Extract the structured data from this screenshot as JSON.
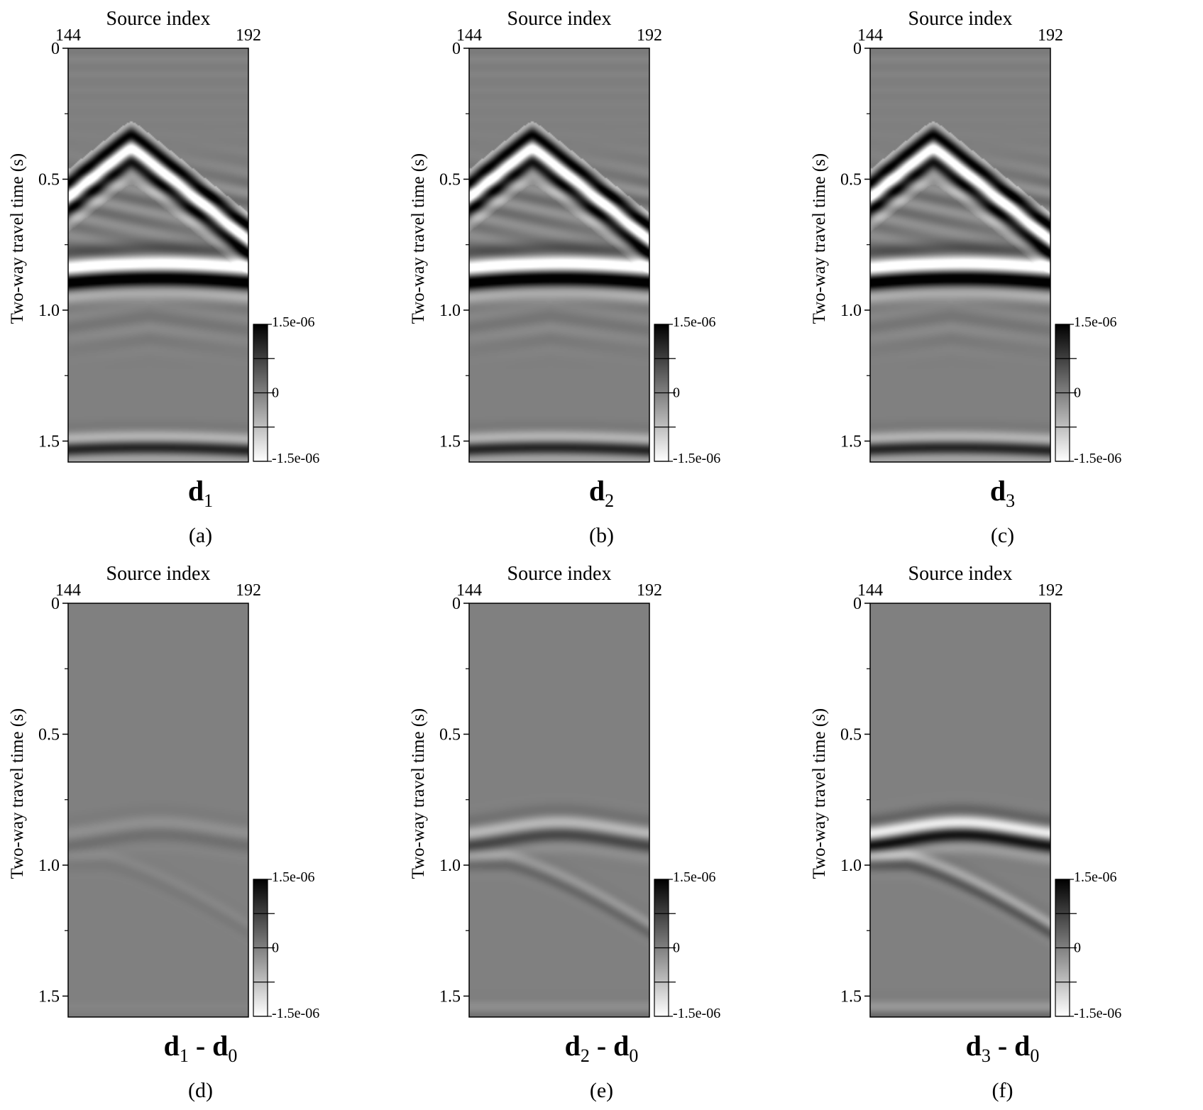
{
  "figure": {
    "panels": [
      {
        "id": "a",
        "label": "(a)",
        "formula": {
          "d": "d",
          "sub": "1",
          "minus": "",
          "d2": "",
          "sub2": ""
        },
        "kind": "data",
        "strength": 1.0,
        "secondary": 1.0
      },
      {
        "id": "b",
        "label": "(b)",
        "formula": {
          "d": "d",
          "sub": "2",
          "minus": "",
          "d2": "",
          "sub2": ""
        },
        "kind": "data",
        "strength": 1.0,
        "secondary": 1.0
      },
      {
        "id": "c",
        "label": "(c)",
        "formula": {
          "d": "d",
          "sub": "3",
          "minus": "",
          "d2": "",
          "sub2": ""
        },
        "kind": "data",
        "strength": 1.0,
        "secondary": 1.0
      },
      {
        "id": "d",
        "label": "(d)",
        "formula": {
          "d": "d",
          "sub": "1",
          "minus": " - ",
          "d2": "d",
          "sub2": "0"
        },
        "kind": "diff",
        "strength": 0.08,
        "secondary": 0.05
      },
      {
        "id": "e",
        "label": "(e)",
        "formula": {
          "d": "d",
          "sub": "2",
          "minus": " - ",
          "d2": "d",
          "sub2": "0"
        },
        "kind": "diff",
        "strength": 0.28,
        "secondary": 0.18
      },
      {
        "id": "f",
        "label": "(f)",
        "formula": {
          "d": "d",
          "sub": "3",
          "minus": " - ",
          "d2": "d",
          "sub2": "0"
        },
        "kind": "diff",
        "strength": 0.55,
        "secondary": 0.3
      }
    ],
    "axes": {
      "x_title": "Source index",
      "x_ticks": [
        "144",
        "192"
      ],
      "x_range": [
        144,
        192
      ],
      "y_title": "Two-way travel time (s)",
      "y_ticks": [
        "0",
        "0.5",
        "1.0",
        "1.5"
      ],
      "y_tick_values": [
        0,
        0.5,
        1.0,
        1.5
      ],
      "y_range": [
        0,
        1.58
      ],
      "y_minor_step": 0.25
    },
    "colorbar": {
      "labels": [
        "1.5e-06",
        "0",
        "-1.5e-06"
      ],
      "range": [
        -1.5e-06,
        1.5e-06
      ],
      "colormap": "gray, white=negative, black=positive"
    }
  }
}
